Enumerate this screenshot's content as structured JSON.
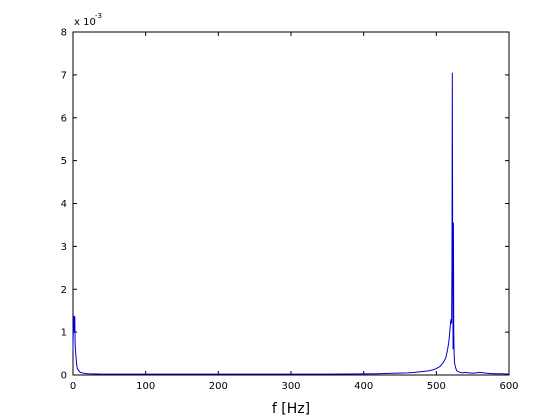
{
  "chart_data": {
    "type": "line",
    "xlabel": "f [Hz]",
    "ylabel": "",
    "y_multiplier": {
      "base": "x 10",
      "exponent": "-3"
    },
    "xlim": [
      0,
      600
    ],
    "ylim": [
      0,
      8
    ],
    "x_ticks": [
      0,
      100,
      200,
      300,
      400,
      500,
      600
    ],
    "y_ticks": [
      0,
      1,
      2,
      3,
      4,
      5,
      6,
      7,
      8
    ],
    "grid": false,
    "series": [
      {
        "color": "#0000cc",
        "x": [
          0,
          0.6,
          1.2,
          1.8,
          2.4,
          3,
          4,
          5,
          6,
          8,
          10,
          15,
          20,
          40,
          80,
          150,
          250,
          350,
          420,
          440,
          460,
          470,
          480,
          490,
          495,
          500,
          505,
          510,
          513,
          515,
          517,
          518,
          519,
          520,
          521,
          521.5,
          522,
          522.5,
          523,
          523.5,
          524,
          524.5,
          525,
          526,
          527,
          528,
          530,
          533,
          536,
          540,
          545,
          550,
          560,
          570,
          580,
          590,
          600
        ],
        "y": [
          0.6,
          1.35,
          1.38,
          1.0,
          1.37,
          0.7,
          0.45,
          0.25,
          0.15,
          0.1,
          0.06,
          0.04,
          0.03,
          0.02,
          0.02,
          0.02,
          0.02,
          0.02,
          0.03,
          0.04,
          0.05,
          0.06,
          0.08,
          0.1,
          0.12,
          0.15,
          0.2,
          0.3,
          0.4,
          0.55,
          0.75,
          0.9,
          1.1,
          1.3,
          1.2,
          2.5,
          7.05,
          3.0,
          0.6,
          3.55,
          1.0,
          0.5,
          0.3,
          0.2,
          0.15,
          0.1,
          0.08,
          0.06,
          0.05,
          0.06,
          0.05,
          0.04,
          0.06,
          0.04,
          0.03,
          0.03,
          0.02
        ]
      }
    ]
  }
}
